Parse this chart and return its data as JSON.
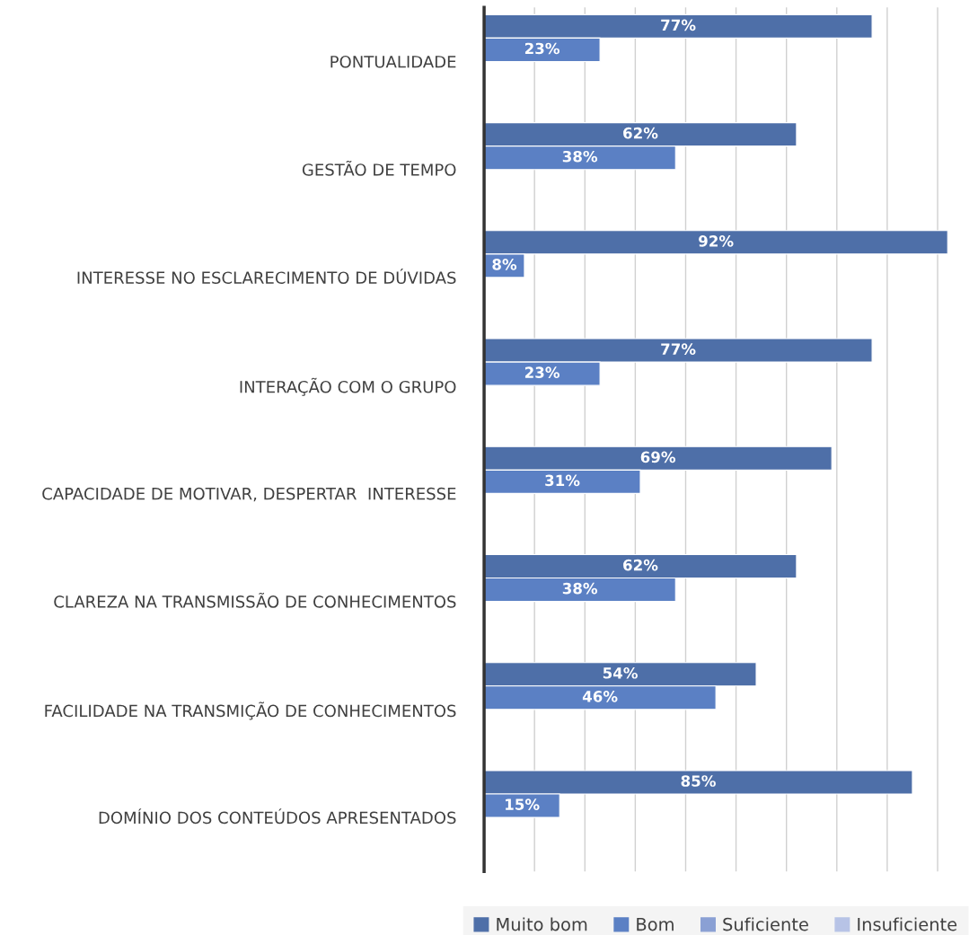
{
  "chart_data": {
    "type": "bar",
    "orientation": "horizontal",
    "categories": [
      "PONTUALIDADE",
      "GESTÃO DE TEMPO",
      "INTERESSE NO ESCLARECIMENTO DE DÚVIDAS",
      "INTERAÇÃO COM O GRUPO",
      "CAPACIDADE DE MOTIVAR, DESPERTAR  INTERESSE",
      "CLAREZA NA TRANSMISSÃO DE CONHECIMENTOS",
      "FACILIDADE NA TRANSMIÇÃO DE CONHECIMENTOS",
      "DOMÍNIO DOS CONTEÚDOS APRESENTADOS"
    ],
    "series": [
      {
        "name": "Muito bom",
        "color": "#4e6fa8",
        "values": [
          77,
          62,
          92,
          77,
          69,
          62,
          54,
          85
        ],
        "value_labels": [
          "77%",
          "62%",
          "92%",
          "77%",
          "69%",
          "62%",
          "54%",
          "85%"
        ]
      },
      {
        "name": "Bom",
        "color": "#5b80c4",
        "values": [
          23,
          38,
          8,
          23,
          31,
          38,
          46,
          15
        ],
        "value_labels": [
          "23%",
          "38%",
          "8%",
          "23%",
          "31%",
          "38%",
          "46%",
          "15%"
        ]
      },
      {
        "name": "Suficiente",
        "color": "#8aa0d4",
        "values": [
          null,
          null,
          null,
          null,
          null,
          null,
          null,
          null
        ]
      },
      {
        "name": "Insuficiente",
        "color": "#b7c3e6",
        "values": [
          null,
          null,
          null,
          null,
          null,
          null,
          null,
          null
        ]
      }
    ],
    "tick_labels": "y",
    "grid": "x",
    "legend": "bottom"
  }
}
